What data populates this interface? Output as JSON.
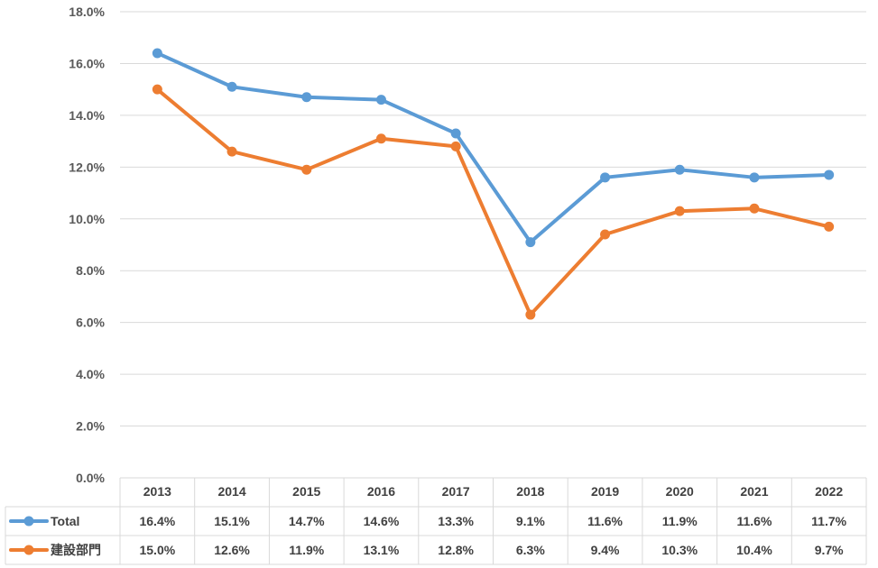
{
  "chart_data": {
    "type": "line",
    "title": "",
    "xlabel": "",
    "ylabel": "",
    "ylim": [
      0,
      18
    ],
    "y_ticks": [
      "0.0%",
      "2.0%",
      "4.0%",
      "6.0%",
      "8.0%",
      "10.0%",
      "12.0%",
      "14.0%",
      "16.0%",
      "18.0%"
    ],
    "grid": true,
    "legend": "data-table-left",
    "categories": [
      "2013",
      "2014",
      "2015",
      "2016",
      "2017",
      "2018",
      "2019",
      "2020",
      "2021",
      "2022"
    ],
    "series": [
      {
        "name": "Total",
        "color": "#5b9bd5",
        "values": [
          16.4,
          15.1,
          14.7,
          14.6,
          13.3,
          9.1,
          11.6,
          11.9,
          11.6,
          11.7
        ],
        "labels": [
          "16.4%",
          "15.1%",
          "14.7%",
          "14.6%",
          "13.3%",
          "9.1%",
          "11.6%",
          "11.9%",
          "11.6%",
          "11.7%"
        ]
      },
      {
        "name": "建設部門",
        "color": "#ed7d31",
        "values": [
          15.0,
          12.6,
          11.9,
          13.1,
          12.8,
          6.3,
          9.4,
          10.3,
          10.4,
          9.7
        ],
        "labels": [
          "15.0%",
          "12.6%",
          "11.9%",
          "13.1%",
          "12.8%",
          "6.3%",
          "9.4%",
          "10.3%",
          "10.4%",
          "9.7%"
        ]
      }
    ]
  }
}
